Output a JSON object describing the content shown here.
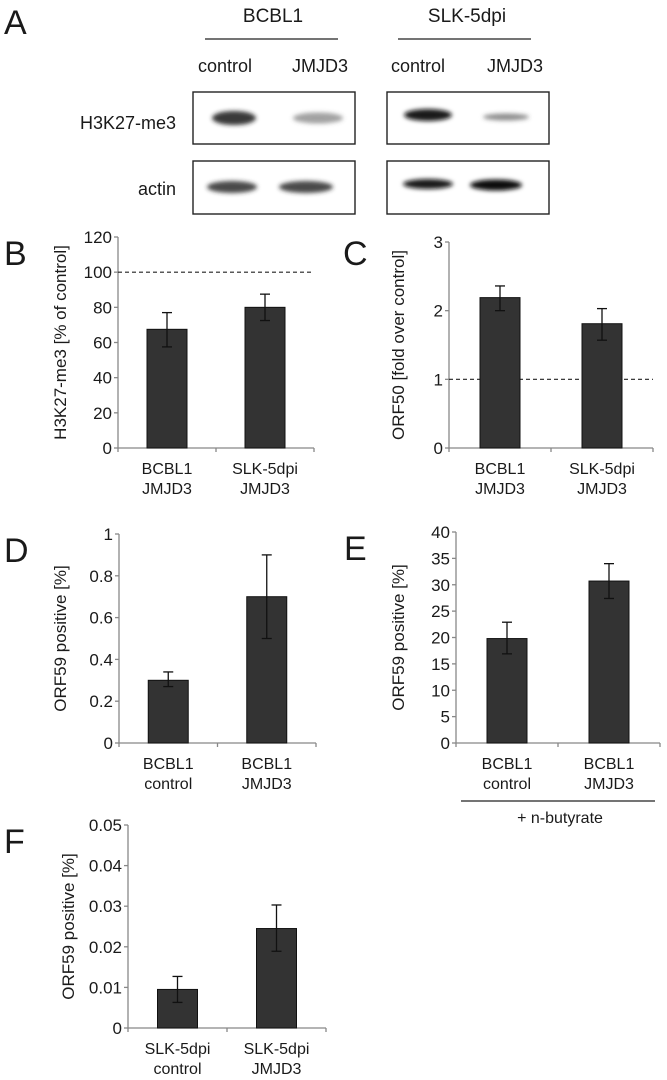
{
  "figure": {
    "panel_a": {
      "letter": "A",
      "groups": [
        {
          "name": "BCBL1",
          "lanes": [
            "control",
            "JMJD3"
          ]
        },
        {
          "name": "SLK-5dpi",
          "lanes": [
            "control",
            "JMJD3"
          ]
        }
      ],
      "rows": [
        "H3K27-me3",
        "actin"
      ],
      "band_intensity": {
        "BCBL1": {
          "H3K27-me3": [
            1.0,
            0.45
          ],
          "actin": [
            0.85,
            0.85
          ]
        },
        "SLK-5dpi": {
          "H3K27-me3": [
            1.0,
            0.4
          ],
          "actin": [
            0.95,
            1.0
          ]
        }
      }
    },
    "colors": {
      "bar": "#333333",
      "axis": "#888888",
      "text": "#1a1a1a"
    }
  },
  "chart_data": [
    {
      "id": "B",
      "letter": "B",
      "type": "bar",
      "categories": [
        [
          "BCBL1",
          "JMJD3"
        ],
        [
          "SLK-5dpi",
          "JMJD3"
        ]
      ],
      "values": [
        67.5,
        80
      ],
      "errors_low": [
        57.5,
        72.5
      ],
      "errors_high": [
        77,
        87.5
      ],
      "ylabel": "H3K27-me3 [% of control]",
      "ylim": [
        0,
        120
      ],
      "yticks": [
        0,
        20,
        40,
        60,
        80,
        100,
        120
      ],
      "ytick_labels": [
        "0",
        "20",
        "40",
        "60",
        "80",
        "100",
        "120"
      ],
      "reference_line": 100,
      "grid": false
    },
    {
      "id": "C",
      "letter": "C",
      "type": "bar",
      "categories": [
        [
          "BCBL1",
          "JMJD3"
        ],
        [
          "SLK-5dpi",
          "JMJD3"
        ]
      ],
      "values": [
        2.19,
        1.81
      ],
      "errors_low": [
        2.0,
        1.57
      ],
      "errors_high": [
        2.36,
        2.03
      ],
      "ylabel": "ORF50 [fold over control]",
      "ylim": [
        0,
        3
      ],
      "yticks": [
        0,
        1,
        2,
        3
      ],
      "ytick_labels": [
        "0",
        "1",
        "2",
        "3"
      ],
      "reference_line": 1,
      "grid": false
    },
    {
      "id": "D",
      "letter": "D",
      "type": "bar",
      "categories": [
        [
          "BCBL1",
          "control"
        ],
        [
          "BCBL1",
          "JMJD3"
        ]
      ],
      "values": [
        0.3,
        0.7
      ],
      "errors_low": [
        0.27,
        0.5
      ],
      "errors_high": [
        0.34,
        0.9
      ],
      "ylabel": "ORF59 positive [%]",
      "ylim": [
        0,
        1
      ],
      "yticks": [
        0,
        0.2,
        0.4,
        0.6,
        0.8,
        1
      ],
      "ytick_labels": [
        "0",
        "0.2",
        "0.4",
        "0.6",
        "0.8",
        "1"
      ],
      "grid": false
    },
    {
      "id": "E",
      "letter": "E",
      "type": "bar",
      "categories": [
        [
          "BCBL1",
          "control"
        ],
        [
          "BCBL1",
          "JMJD3"
        ]
      ],
      "values": [
        19.8,
        30.7
      ],
      "errors_low": [
        16.9,
        27.4
      ],
      "errors_high": [
        22.9,
        34.0
      ],
      "ylabel": "ORF59 positive [%]",
      "ylim": [
        0,
        40
      ],
      "yticks": [
        0,
        5,
        10,
        15,
        20,
        25,
        30,
        35,
        40
      ],
      "ytick_labels": [
        "0",
        "5",
        "10",
        "15",
        "20",
        "25",
        "30",
        "35",
        "40"
      ],
      "group_label": "+ n-butyrate",
      "grid": false
    },
    {
      "id": "F",
      "letter": "F",
      "type": "bar",
      "categories": [
        [
          "SLK-5dpi",
          "control"
        ],
        [
          "SLK-5dpi",
          "JMJD3"
        ]
      ],
      "values": [
        0.0095,
        0.0245
      ],
      "errors_low": [
        0.0063,
        0.0189
      ],
      "errors_high": [
        0.0127,
        0.0303
      ],
      "ylabel": "ORF59 positive [%]",
      "ylim": [
        0,
        0.05
      ],
      "yticks": [
        0,
        0.01,
        0.02,
        0.03,
        0.04,
        0.05
      ],
      "ytick_labels": [
        "0",
        "0.01",
        "0.02",
        "0.03",
        "0.04",
        "0.05"
      ],
      "grid": false
    }
  ]
}
